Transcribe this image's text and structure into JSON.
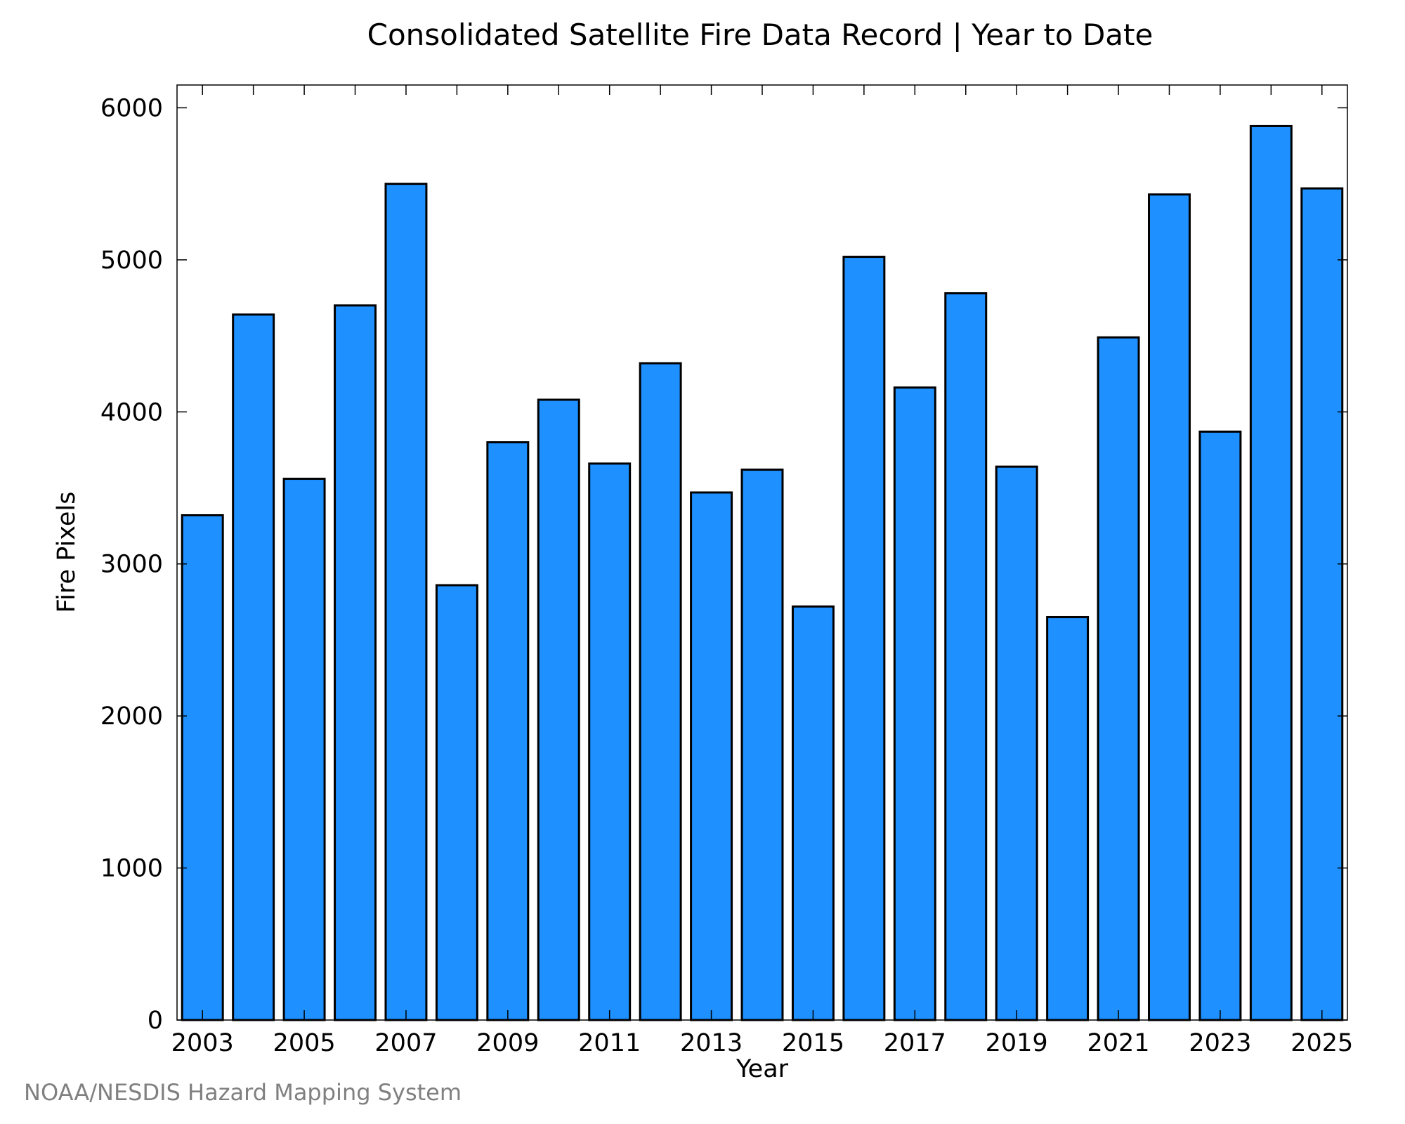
{
  "chart_data": {
    "type": "bar",
    "title": "Consolidated Satellite Fire Data Record | Year to Date",
    "xlabel": "Year",
    "ylabel": "Fire Pixels",
    "categories": [
      "2003",
      "2004",
      "2005",
      "2006",
      "2007",
      "2008",
      "2009",
      "2010",
      "2011",
      "2012",
      "2013",
      "2014",
      "2015",
      "2016",
      "2017",
      "2018",
      "2019",
      "2020",
      "2021",
      "2022",
      "2023",
      "2024",
      "2025"
    ],
    "values": [
      3320,
      4640,
      3560,
      4700,
      5500,
      2860,
      3800,
      4080,
      3660,
      4320,
      3470,
      3620,
      2720,
      5020,
      4160,
      4780,
      3640,
      2650,
      4490,
      5430,
      3870,
      5880,
      5470
    ],
    "x_tick_labels": [
      "2003",
      "2005",
      "2007",
      "2009",
      "2011",
      "2013",
      "2015",
      "2017",
      "2019",
      "2021",
      "2023",
      "2025"
    ],
    "y_ticks": [
      0,
      1000,
      2000,
      3000,
      4000,
      5000,
      6000
    ],
    "ylim": [
      0,
      6150
    ],
    "grid": false,
    "legend": "none",
    "bar_color": "#1e90ff",
    "bar_edge_color": "#000000"
  },
  "footer": {
    "credit": "NOAA/NESDIS Hazard Mapping System"
  }
}
